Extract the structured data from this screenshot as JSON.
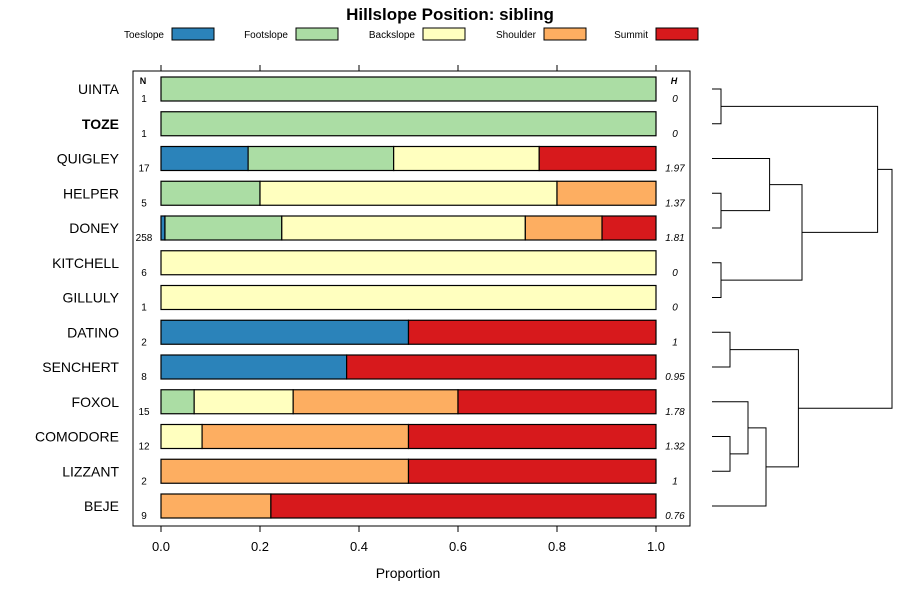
{
  "chart_data": {
    "type": "bar",
    "subtype": "stacked-horizontal-proportion-with-dendrogram",
    "title": "Hillslope Position: sibling",
    "xlabel": "Proportion",
    "xlim": [
      0,
      1
    ],
    "xticks": [
      "0.0",
      "0.2",
      "0.4",
      "0.6",
      "0.8",
      "1.0"
    ],
    "column_headers": {
      "n": "N",
      "h": "H"
    },
    "legend": [
      {
        "name": "Toeslope",
        "color": "#2b83ba"
      },
      {
        "name": "Footslope",
        "color": "#abdda4"
      },
      {
        "name": "Backslope",
        "color": "#ffffbf"
      },
      {
        "name": "Shoulder",
        "color": "#fdae61"
      },
      {
        "name": "Summit",
        "color": "#d7191c"
      }
    ],
    "rows": [
      {
        "name": "UINTA",
        "bold": false,
        "n": "1",
        "h": "0",
        "values": [
          0,
          1,
          0,
          0,
          0
        ]
      },
      {
        "name": "TOZE",
        "bold": true,
        "n": "1",
        "h": "0",
        "values": [
          0,
          1,
          0,
          0,
          0
        ]
      },
      {
        "name": "QUIGLEY",
        "bold": false,
        "n": "17",
        "h": "1.97",
        "values": [
          0.176,
          0.294,
          0.294,
          0,
          0.236
        ]
      },
      {
        "name": "HELPER",
        "bold": false,
        "n": "5",
        "h": "1.37",
        "values": [
          0,
          0.2,
          0.6,
          0.2,
          0
        ]
      },
      {
        "name": "DONEY",
        "bold": false,
        "n": "258",
        "h": "1.81",
        "values": [
          0.008,
          0.236,
          0.492,
          0.155,
          0.109
        ]
      },
      {
        "name": "KITCHELL",
        "bold": false,
        "n": "6",
        "h": "0",
        "values": [
          0,
          0,
          1,
          0,
          0
        ]
      },
      {
        "name": "GILLULY",
        "bold": false,
        "n": "1",
        "h": "0",
        "values": [
          0,
          0,
          1,
          0,
          0
        ]
      },
      {
        "name": "DATINO",
        "bold": false,
        "n": "2",
        "h": "1",
        "values": [
          0.5,
          0,
          0,
          0,
          0.5
        ]
      },
      {
        "name": "SENCHERT",
        "bold": false,
        "n": "8",
        "h": "0.95",
        "values": [
          0.375,
          0,
          0,
          0,
          0.625
        ]
      },
      {
        "name": "FOXOL",
        "bold": false,
        "n": "15",
        "h": "1.78",
        "values": [
          0,
          0.067,
          0.2,
          0.333,
          0.4
        ]
      },
      {
        "name": "COMODORE",
        "bold": false,
        "n": "12",
        "h": "1.32",
        "values": [
          0,
          0,
          0.083,
          0.417,
          0.5
        ]
      },
      {
        "name": "LIZZANT",
        "bold": false,
        "n": "2",
        "h": "1",
        "values": [
          0,
          0,
          0,
          0.5,
          0.5
        ]
      },
      {
        "name": "BEJE",
        "bold": false,
        "n": "9",
        "h": "0.76",
        "values": [
          0,
          0,
          0,
          0.222,
          0.778
        ]
      }
    ],
    "dendrogram": {
      "merges": [
        {
          "a": "UINTA",
          "b": "TOZE",
          "height": 0.05
        },
        {
          "a": "HELPER",
          "b": "DONEY",
          "height": 0.05
        },
        {
          "a": "QUIGLEY",
          "b": "m2",
          "height": 0.32
        },
        {
          "a": "KITCHELL",
          "b": "GILLULY",
          "height": 0.05
        },
        {
          "a": "m3",
          "b": "m4",
          "height": 0.5
        },
        {
          "a": "m1",
          "b": "m5",
          "height": 0.92
        },
        {
          "a": "DATINO",
          "b": "SENCHERT",
          "height": 0.1
        },
        {
          "a": "COMODORE",
          "b": "LIZZANT",
          "height": 0.1
        },
        {
          "a": "FOXOL",
          "b": "m8",
          "height": 0.2
        },
        {
          "a": "m9",
          "b": "BEJE",
          "height": 0.3
        },
        {
          "a": "m7",
          "b": "m10",
          "height": 0.48
        },
        {
          "a": "m6",
          "b": "m11",
          "height": 1.0
        }
      ]
    }
  }
}
